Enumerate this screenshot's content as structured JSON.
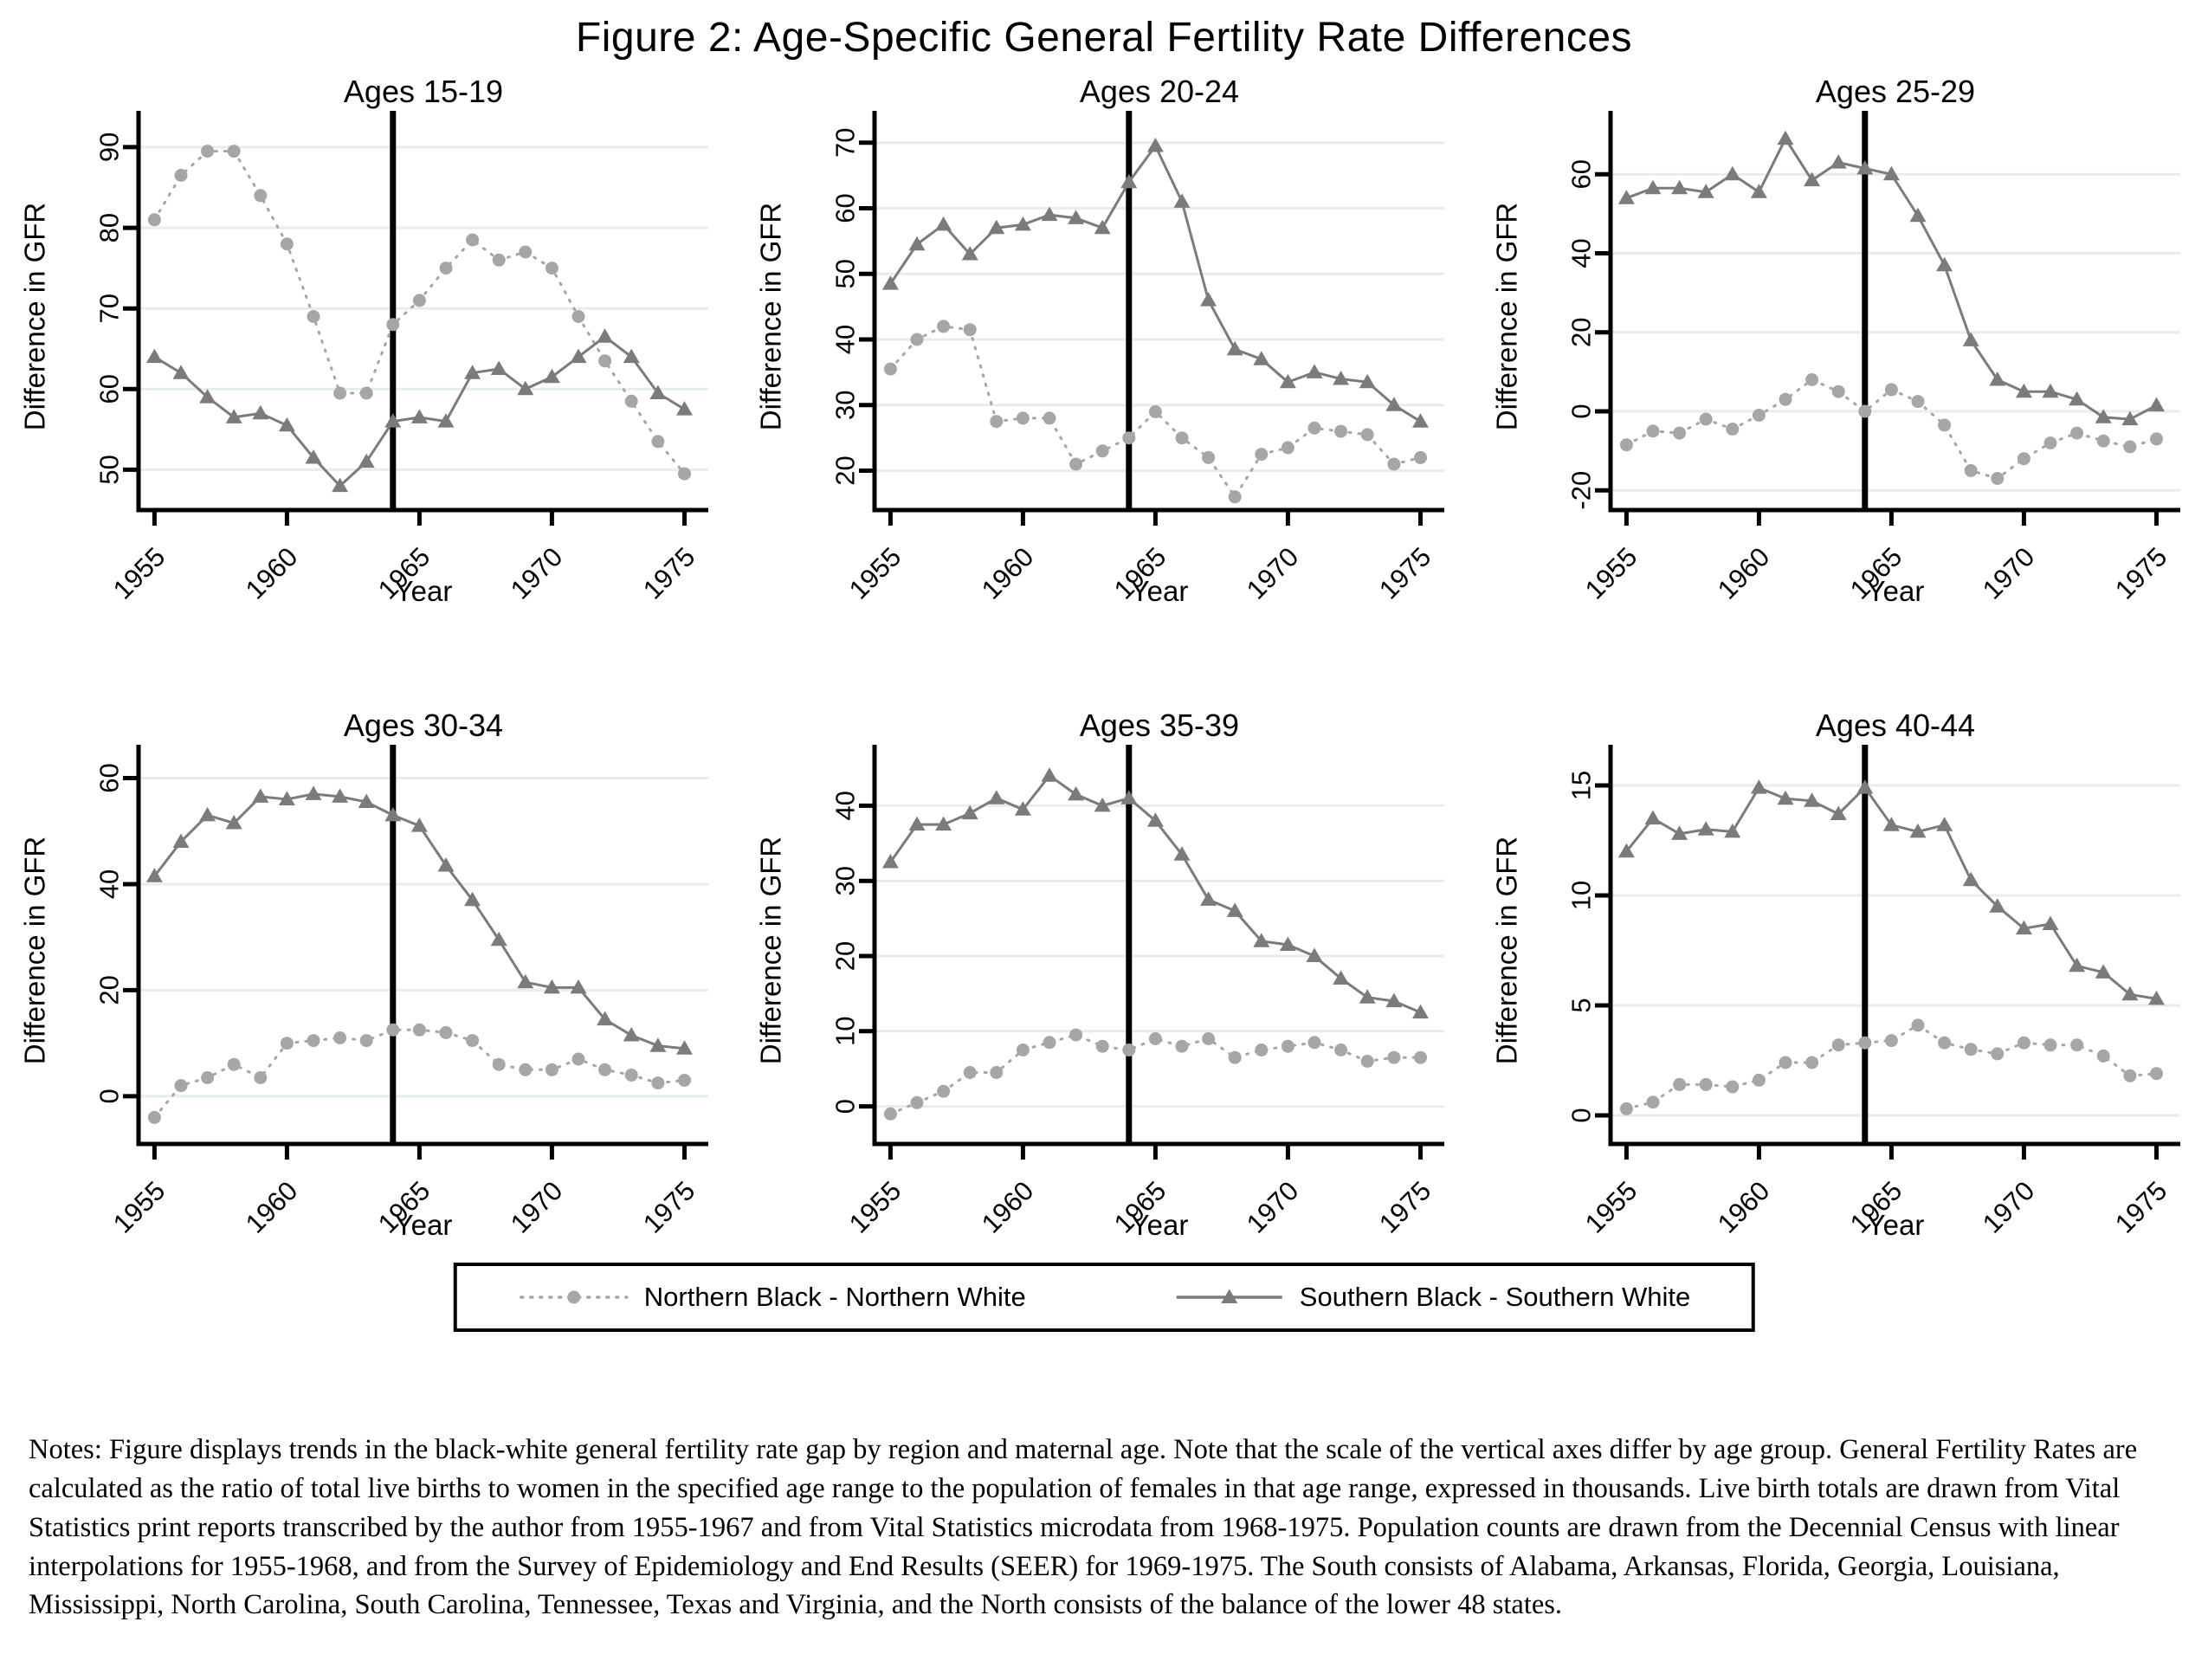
{
  "title": "Figure 2: Age-Specific General Fertility Rate Differences",
  "legend": {
    "north_label": "Northern Black - Northern White",
    "south_label": "Southern Black - Southern White"
  },
  "notes": "Notes: Figure displays trends in the black-white general fertility rate gap by region and maternal age. Note that the scale of the vertical axes differ by age group. General Fertility Rates are calculated as the ratio of total live births to women in the specified age range to the population of females in that age range, expressed in thousands. Live birth totals are drawn from Vital Statistics print reports transcribed by the author from 1955-1967 and from Vital Statistics microdata from 1968-1975. Population counts are drawn from the Decennial Census with linear interpolations for 1955-1968, and from the Survey of Epidemiology and End Results (SEER) for 1969-1975. The South consists of Alabama, Arkansas, Florida, Georgia, Louisiana, Mississippi, North Carolina, South Carolina, Tennessee, Texas and Virginia, and the North consists of the balance of the lower 48 states.",
  "colors": {
    "north": "#a6a6a6",
    "south": "#7b7b7b",
    "grid": "#e4eef0",
    "axis": "#000000"
  },
  "chart_data": [
    {
      "type": "line",
      "title": "Ages 15-19",
      "xlabel": "Year",
      "ylabel": "Difference in GFR",
      "x": [
        1955,
        1956,
        1957,
        1958,
        1959,
        1960,
        1961,
        1962,
        1963,
        1964,
        1965,
        1966,
        1967,
        1968,
        1969,
        1970,
        1971,
        1972,
        1973,
        1974,
        1975
      ],
      "xticks": [
        1955,
        1960,
        1965,
        1970,
        1975
      ],
      "xlim": [
        1954.4,
        1975.9
      ],
      "yticks": [
        50,
        60,
        70,
        80,
        90
      ],
      "ylim": [
        45,
        93
      ],
      "ref_line_x": 1964,
      "grid": true,
      "legend_position": "none",
      "series": [
        {
          "name": "Northern Black - Northern White",
          "marker": "circle",
          "style": "dotted",
          "values": [
            81,
            86.5,
            89.5,
            89.5,
            84,
            78,
            69,
            59.5,
            59.5,
            68,
            71,
            75,
            78.5,
            76,
            77,
            75,
            69,
            63.5,
            58.5,
            53.5,
            49.5
          ]
        },
        {
          "name": "Southern Black - Southern White",
          "marker": "triangle",
          "style": "solid",
          "values": [
            64,
            62,
            59,
            56.5,
            57,
            55.5,
            51.5,
            48,
            51,
            56,
            56.5,
            56,
            62,
            62.5,
            60,
            61.5,
            64,
            66.5,
            64,
            59.5,
            57.5
          ]
        }
      ]
    },
    {
      "type": "line",
      "title": "Ages 20-24",
      "xlabel": "Year",
      "ylabel": "Difference in GFR",
      "x": [
        1955,
        1956,
        1957,
        1958,
        1959,
        1960,
        1961,
        1962,
        1963,
        1964,
        1965,
        1966,
        1967,
        1968,
        1969,
        1970,
        1971,
        1972,
        1973,
        1974,
        1975
      ],
      "xticks": [
        1955,
        1960,
        1965,
        1970,
        1975
      ],
      "xlim": [
        1954.4,
        1975.9
      ],
      "yticks": [
        20,
        30,
        40,
        50,
        60,
        70
      ],
      "ylim": [
        14,
        73
      ],
      "ref_line_x": 1964,
      "grid": true,
      "legend_position": "none",
      "series": [
        {
          "name": "Northern Black - Northern White",
          "marker": "circle",
          "style": "dotted",
          "values": [
            35.5,
            40,
            42,
            41.5,
            27.5,
            28,
            28,
            21,
            23,
            25,
            29,
            25,
            22,
            16,
            22.5,
            23.5,
            26.5,
            26,
            25.5,
            21,
            22
          ]
        },
        {
          "name": "Southern Black - Southern White",
          "marker": "triangle",
          "style": "solid",
          "values": [
            48.5,
            54.5,
            57.5,
            53,
            57,
            57.5,
            59,
            58.5,
            57,
            64,
            69.5,
            61,
            46,
            38.5,
            37,
            33.5,
            35,
            34,
            33.5,
            30,
            27.5
          ]
        }
      ]
    },
    {
      "type": "line",
      "title": "Ages 25-29",
      "xlabel": "Year",
      "ylabel": "Difference in GFR",
      "x": [
        1955,
        1956,
        1957,
        1958,
        1959,
        1960,
        1961,
        1962,
        1963,
        1964,
        1965,
        1966,
        1967,
        1968,
        1969,
        1970,
        1971,
        1972,
        1973,
        1974,
        1975
      ],
      "xticks": [
        1955,
        1960,
        1965,
        1970,
        1975
      ],
      "xlim": [
        1954.4,
        1975.9
      ],
      "yticks": [
        -20,
        0,
        20,
        40,
        60
      ],
      "ylim": [
        -25,
        73
      ],
      "ref_line_x": 1964,
      "grid": true,
      "legend_position": "none",
      "series": [
        {
          "name": "Northern Black - Northern White",
          "marker": "circle",
          "style": "dotted",
          "values": [
            -8.5,
            -5,
            -5.5,
            -2,
            -4.5,
            -1,
            3,
            8,
            5,
            0,
            5.5,
            2.5,
            -3.5,
            -15,
            -17,
            -12,
            -8,
            -5.5,
            -7.5,
            -9,
            -7
          ]
        },
        {
          "name": "Southern Black - Southern White",
          "marker": "triangle",
          "style": "solid",
          "values": [
            54,
            56.5,
            56.5,
            55.5,
            60,
            55.5,
            69,
            58.5,
            63,
            61.5,
            60,
            49.5,
            37,
            18,
            8,
            5,
            5,
            3,
            -1.5,
            -2,
            1.5
          ]
        }
      ]
    },
    {
      "type": "line",
      "title": "Ages 30-34",
      "xlabel": "Year",
      "ylabel": "Difference in GFR",
      "x": [
        1955,
        1956,
        1957,
        1958,
        1959,
        1960,
        1961,
        1962,
        1963,
        1964,
        1965,
        1966,
        1967,
        1968,
        1969,
        1970,
        1971,
        1972,
        1973,
        1974,
        1975
      ],
      "xticks": [
        1955,
        1960,
        1965,
        1970,
        1975
      ],
      "xlim": [
        1954.4,
        1975.9
      ],
      "yticks": [
        0,
        20,
        40,
        60
      ],
      "ylim": [
        -9,
        64
      ],
      "ref_line_x": 1964,
      "grid": true,
      "legend_position": "none",
      "series": [
        {
          "name": "Northern Black - Northern White",
          "marker": "circle",
          "style": "dotted",
          "values": [
            -4,
            2,
            3.5,
            6,
            3.5,
            10,
            10.5,
            11,
            10.5,
            12.5,
            12.5,
            12,
            10.5,
            6,
            5,
            5,
            7,
            5,
            4,
            2.5,
            3
          ]
        },
        {
          "name": "Southern Black - Southern White",
          "marker": "triangle",
          "style": "solid",
          "values": [
            41.5,
            48,
            53,
            51.5,
            56.5,
            56,
            57,
            56.5,
            55.5,
            53,
            51,
            43.5,
            37,
            29.5,
            21.5,
            20.5,
            20.5,
            14.5,
            11.5,
            9.5,
            9
          ]
        }
      ]
    },
    {
      "type": "line",
      "title": "Ages 35-39",
      "xlabel": "Year",
      "ylabel": "Difference in GFR",
      "x": [
        1955,
        1956,
        1957,
        1958,
        1959,
        1960,
        1961,
        1962,
        1963,
        1964,
        1965,
        1966,
        1967,
        1968,
        1969,
        1970,
        1971,
        1972,
        1973,
        1974,
        1975
      ],
      "xticks": [
        1955,
        1960,
        1965,
        1970,
        1975
      ],
      "xlim": [
        1954.4,
        1975.9
      ],
      "yticks": [
        0,
        10,
        20,
        30,
        40
      ],
      "ylim": [
        -5,
        46.5
      ],
      "ref_line_x": 1964,
      "grid": true,
      "legend_position": "none",
      "series": [
        {
          "name": "Northern Black - Northern White",
          "marker": "circle",
          "style": "dotted",
          "values": [
            -1,
            0.5,
            2,
            4.5,
            4.5,
            7.5,
            8.5,
            9.5,
            8,
            7.5,
            9,
            8,
            9,
            6.5,
            7.5,
            8,
            8.5,
            7.5,
            6,
            6.5,
            6.5
          ]
        },
        {
          "name": "Southern Black - Southern White",
          "marker": "triangle",
          "style": "solid",
          "values": [
            32.5,
            37.5,
            37.5,
            39,
            41,
            39.5,
            44,
            41.5,
            40,
            41,
            38,
            33.5,
            27.5,
            26,
            22,
            21.5,
            20,
            17,
            14.5,
            14,
            12.5
          ]
        }
      ]
    },
    {
      "type": "line",
      "title": "Ages 40-44",
      "xlabel": "Year",
      "ylabel": "Difference in GFR",
      "x": [
        1955,
        1956,
        1957,
        1958,
        1959,
        1960,
        1961,
        1962,
        1963,
        1964,
        1965,
        1966,
        1967,
        1968,
        1969,
        1970,
        1971,
        1972,
        1973,
        1974,
        1975
      ],
      "xticks": [
        1955,
        1960,
        1965,
        1970,
        1975
      ],
      "xlim": [
        1954.4,
        1975.9
      ],
      "yticks": [
        0,
        5,
        10,
        15
      ],
      "ylim": [
        -1.3,
        16.3
      ],
      "ref_line_x": 1964,
      "grid": true,
      "legend_position": "none",
      "series": [
        {
          "name": "Northern Black - Northern White",
          "marker": "circle",
          "style": "dotted",
          "values": [
            0.3,
            0.6,
            1.4,
            1.4,
            1.3,
            1.6,
            2.4,
            2.4,
            3.2,
            3.3,
            3.4,
            4.1,
            3.3,
            3,
            2.8,
            3.3,
            3.2,
            3.2,
            2.7,
            1.8,
            1.9
          ]
        },
        {
          "name": "Southern Black - Southern White",
          "marker": "triangle",
          "style": "solid",
          "values": [
            12,
            13.5,
            12.8,
            13,
            12.9,
            14.9,
            14.4,
            14.3,
            13.7,
            14.9,
            13.2,
            12.9,
            13.2,
            10.7,
            9.5,
            8.5,
            8.7,
            6.8,
            6.5,
            5.5,
            5.3
          ]
        }
      ]
    }
  ]
}
